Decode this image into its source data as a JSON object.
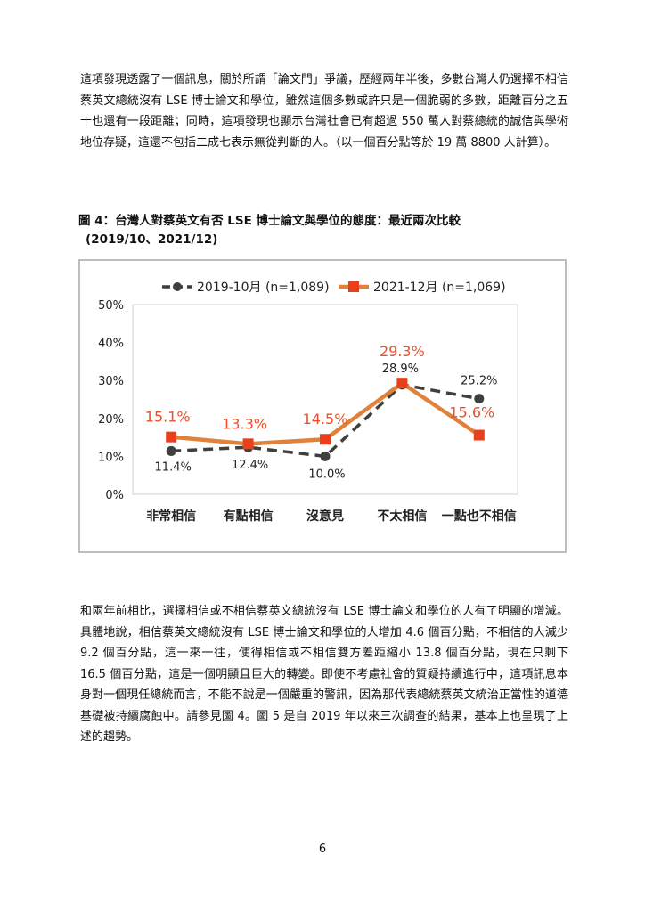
{
  "paragraphs": [
    "這項發現透露了一個訊息，關於所謂「論文門」爭議，歷經兩年半後，多數台灣人仍選擇不相信蔡英文總統沒有 LSE 博士論文和學位，雖然這個多數或許只是一個脆弱的多數，距離百分之五十也還有一段距離；同時，這項發現也顯示台灣社會已有超過 550 萬人對蔡總統的誠信與學術地位存疑，這還不包括二成七表示無從判斷的人。（以一個百分點等於 19 萬 8800 人計算）。",
    "和兩年前相比，選擇相信或不相信蔡英文總統沒有 LSE 博士論文和學位的人有了明顯的增減。具體地說，相信蔡英文總統沒有 LSE 博士論文和學位的人增加 4.6 個百分點，不相信的人減少 9.2 個百分點，這一來一往，使得相信或不相信雙方差距縮小 13.8 個百分點，現在只剩下 16.5 個百分點，這是一個明顯且巨大的轉變。即使不考慮社會的質疑持續進行中，這項訊息本身對一個現任總統而言，不能不說是一個嚴重的警訊，因為那代表總統蔡英文統治正當性的道德基礎被持續腐蝕中。請參見圖 4。圖 5 是自 2019 年以來三次調查的結果，基本上也呈現了上述的趨勢。"
  ],
  "figure": {
    "title": "圖 4：台灣人對蔡英文有否 LSE 博士論文與學位的態度：最近兩次比較",
    "subtitle": "(2019/10、2021/12)"
  },
  "chart_data": {
    "type": "line",
    "categories": [
      "非常相信",
      "有點相信",
      "沒意見",
      "不太相信",
      "一點也不相信"
    ],
    "series": [
      {
        "name": "2019-10月  (n=1,089)",
        "values": [
          11.4,
          12.4,
          10.0,
          28.9,
          25.2
        ],
        "labels": [
          "11.4%",
          "12.4%",
          "10.0%",
          "28.9%",
          "25.2%"
        ],
        "color": "#3f3f3f",
        "style": "dashed",
        "marker": "circle"
      },
      {
        "name": "2021-12月  (n=1,069)",
        "values": [
          15.1,
          13.3,
          14.5,
          29.3,
          15.6
        ],
        "labels": [
          "15.1%",
          "13.3%",
          "14.5%",
          "29.3%",
          "15.6%"
        ],
        "color": "#e0823a",
        "label_color": "#e8502a",
        "marker_color": "#e8401c",
        "style": "solid",
        "marker": "square"
      }
    ],
    "ylim": [
      0,
      50
    ],
    "yticks": [
      "0%",
      "10%",
      "20%",
      "30%",
      "40%",
      "50%"
    ],
    "grid": false,
    "legend": "top"
  },
  "page_number": "6"
}
